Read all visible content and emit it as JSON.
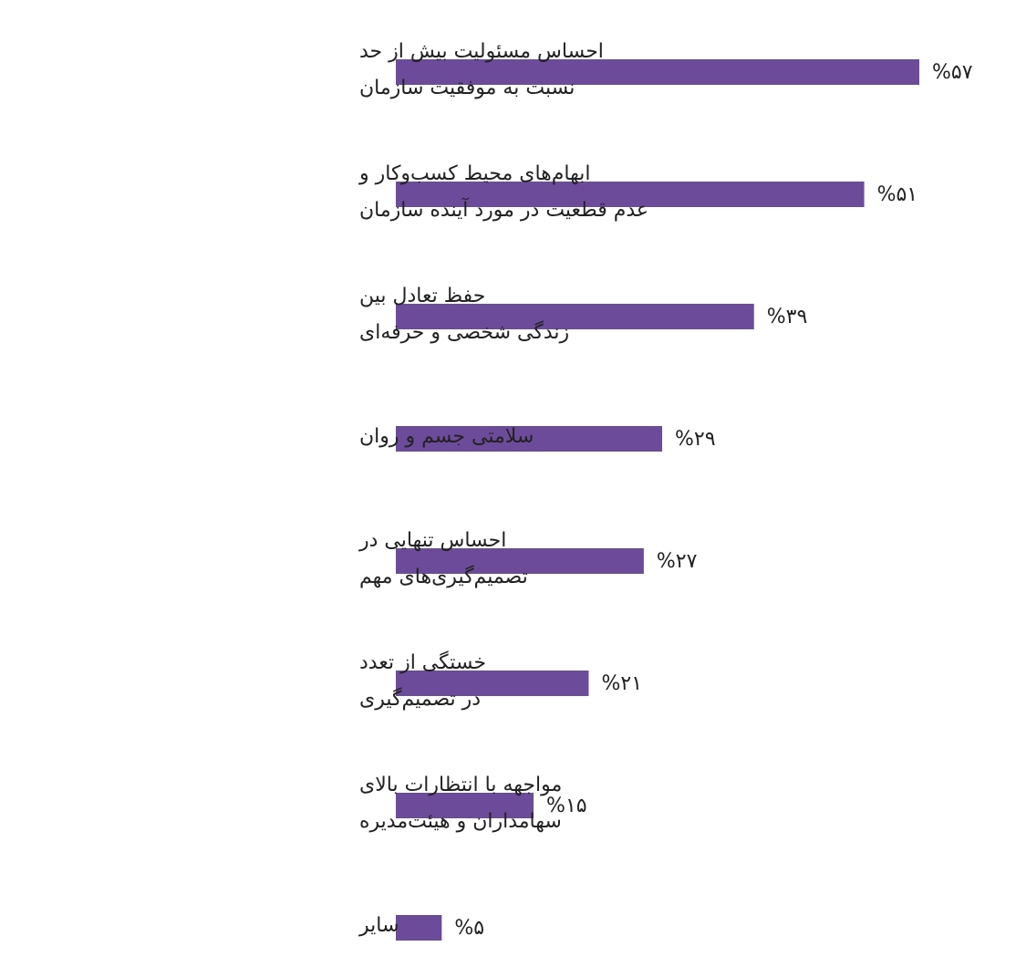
{
  "chart_data": {
    "type": "hbar",
    "categories": [
      [
        "احساس مسئولیت بیش از حد",
        "نسبت به موفقیت سازمان"
      ],
      [
        "ابهام‌های محیط کسب‌وکار و",
        "عدم قطعیت در مورد آینده سازمان"
      ],
      [
        "حفظ تعادل بین",
        "زندگی شخصی و حرفه‌ای"
      ],
      [
        "سلامتی جسم و روان"
      ],
      [
        "احساس تنهایی در",
        "تصمیم‌گیری‌های مهم"
      ],
      [
        "خستگی از تعدد",
        "در تصمیم‌گیری"
      ],
      [
        "مواجهه با انتظارات بالای",
        "سهامداران و هیئت‌مدیره"
      ],
      [
        "سایر"
      ]
    ],
    "values": [
      57,
      51,
      39,
      29,
      27,
      21,
      15,
      5
    ],
    "value_labels": [
      "%۵۷",
      "%۵۱",
      "%۳۹",
      "%۲۹",
      "%۲۷",
      "%۲۱",
      "%۱۵",
      "%۵"
    ],
    "color": "#6c4b9b"
  }
}
